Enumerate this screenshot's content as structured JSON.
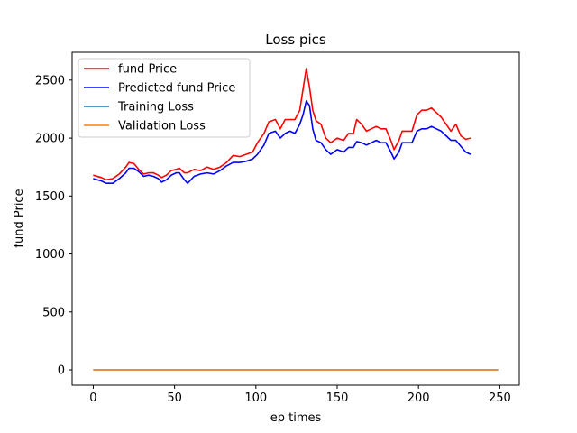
{
  "chart_data": {
    "type": "line",
    "title": "Loss pics",
    "xlabel": "ep times",
    "ylabel": "fund Price",
    "xlim": [
      -13,
      262
    ],
    "ylim": [
      -132,
      2740
    ],
    "xticks": [
      0,
      50,
      100,
      150,
      200,
      250
    ],
    "yticks": [
      0,
      500,
      1000,
      1500,
      2000,
      2500
    ],
    "grid": false,
    "legend_position": "top-left",
    "series": [
      {
        "name": "fund Price",
        "color": "#ff0000",
        "points": [
          [
            0,
            1680
          ],
          [
            5,
            1660
          ],
          [
            8,
            1640
          ],
          [
            12,
            1650
          ],
          [
            16,
            1690
          ],
          [
            20,
            1750
          ],
          [
            22,
            1790
          ],
          [
            25,
            1780
          ],
          [
            28,
            1730
          ],
          [
            31,
            1690
          ],
          [
            34,
            1700
          ],
          [
            37,
            1700
          ],
          [
            40,
            1680
          ],
          [
            42,
            1660
          ],
          [
            45,
            1680
          ],
          [
            48,
            1720
          ],
          [
            51,
            1730
          ],
          [
            53,
            1740
          ],
          [
            56,
            1700
          ],
          [
            58,
            1700
          ],
          [
            62,
            1730
          ],
          [
            66,
            1720
          ],
          [
            70,
            1750
          ],
          [
            74,
            1730
          ],
          [
            78,
            1750
          ],
          [
            82,
            1790
          ],
          [
            86,
            1850
          ],
          [
            90,
            1840
          ],
          [
            94,
            1860
          ],
          [
            98,
            1880
          ],
          [
            101,
            1960
          ],
          [
            105,
            2040
          ],
          [
            108,
            2140
          ],
          [
            112,
            2160
          ],
          [
            115,
            2080
          ],
          [
            118,
            2160
          ],
          [
            121,
            2160
          ],
          [
            124,
            2160
          ],
          [
            127,
            2240
          ],
          [
            129,
            2420
          ],
          [
            131,
            2600
          ],
          [
            133,
            2440
          ],
          [
            135,
            2240
          ],
          [
            137,
            2150
          ],
          [
            140,
            2120
          ],
          [
            143,
            2000
          ],
          [
            146,
            1960
          ],
          [
            150,
            2000
          ],
          [
            154,
            1980
          ],
          [
            157,
            2040
          ],
          [
            160,
            2040
          ],
          [
            162,
            2160
          ],
          [
            165,
            2120
          ],
          [
            168,
            2060
          ],
          [
            171,
            2080
          ],
          [
            174,
            2100
          ],
          [
            177,
            2080
          ],
          [
            180,
            2080
          ],
          [
            183,
            1980
          ],
          [
            185,
            1900
          ],
          [
            188,
            1980
          ],
          [
            190,
            2060
          ],
          [
            193,
            2060
          ],
          [
            196,
            2060
          ],
          [
            199,
            2200
          ],
          [
            202,
            2240
          ],
          [
            205,
            2240
          ],
          [
            208,
            2260
          ],
          [
            211,
            2220
          ],
          [
            214,
            2180
          ],
          [
            217,
            2120
          ],
          [
            220,
            2060
          ],
          [
            223,
            2120
          ],
          [
            226,
            2020
          ],
          [
            229,
            1990
          ],
          [
            232,
            2000
          ]
        ]
      },
      {
        "name": "Predicted fund Price",
        "color": "#0000ff",
        "points": [
          [
            0,
            1650
          ],
          [
            5,
            1630
          ],
          [
            8,
            1610
          ],
          [
            12,
            1610
          ],
          [
            16,
            1650
          ],
          [
            20,
            1700
          ],
          [
            22,
            1740
          ],
          [
            25,
            1740
          ],
          [
            28,
            1710
          ],
          [
            31,
            1670
          ],
          [
            34,
            1680
          ],
          [
            37,
            1670
          ],
          [
            40,
            1650
          ],
          [
            42,
            1620
          ],
          [
            45,
            1640
          ],
          [
            48,
            1680
          ],
          [
            51,
            1700
          ],
          [
            53,
            1700
          ],
          [
            56,
            1640
          ],
          [
            58,
            1610
          ],
          [
            62,
            1670
          ],
          [
            66,
            1690
          ],
          [
            70,
            1700
          ],
          [
            74,
            1690
          ],
          [
            78,
            1720
          ],
          [
            82,
            1760
          ],
          [
            86,
            1790
          ],
          [
            90,
            1790
          ],
          [
            94,
            1800
          ],
          [
            98,
            1820
          ],
          [
            101,
            1860
          ],
          [
            105,
            1940
          ],
          [
            108,
            2040
          ],
          [
            112,
            2060
          ],
          [
            115,
            2000
          ],
          [
            118,
            2040
          ],
          [
            121,
            2060
          ],
          [
            124,
            2040
          ],
          [
            127,
            2120
          ],
          [
            129,
            2200
          ],
          [
            131,
            2320
          ],
          [
            133,
            2280
          ],
          [
            135,
            2080
          ],
          [
            137,
            1980
          ],
          [
            140,
            1960
          ],
          [
            143,
            1900
          ],
          [
            146,
            1860
          ],
          [
            150,
            1900
          ],
          [
            154,
            1880
          ],
          [
            157,
            1920
          ],
          [
            160,
            1920
          ],
          [
            162,
            1970
          ],
          [
            165,
            1960
          ],
          [
            168,
            1940
          ],
          [
            171,
            1960
          ],
          [
            174,
            1980
          ],
          [
            177,
            1960
          ],
          [
            180,
            1960
          ],
          [
            183,
            1880
          ],
          [
            185,
            1820
          ],
          [
            188,
            1880
          ],
          [
            190,
            1960
          ],
          [
            193,
            1960
          ],
          [
            196,
            1960
          ],
          [
            199,
            2060
          ],
          [
            202,
            2080
          ],
          [
            205,
            2080
          ],
          [
            208,
            2100
          ],
          [
            211,
            2080
          ],
          [
            214,
            2060
          ],
          [
            217,
            2020
          ],
          [
            220,
            1980
          ],
          [
            223,
            1980
          ],
          [
            226,
            1930
          ],
          [
            229,
            1880
          ],
          [
            232,
            1860
          ]
        ]
      },
      {
        "name": "Training Loss",
        "color": "#1f77b4",
        "points": [
          [
            0,
            0.5
          ],
          [
            50,
            0.3
          ],
          [
            100,
            0.2
          ],
          [
            150,
            0.2
          ],
          [
            200,
            0.1
          ],
          [
            249,
            0.1
          ]
        ]
      },
      {
        "name": "Validation Loss",
        "color": "#ff7f0e",
        "points": [
          [
            0,
            0.5
          ],
          [
            50,
            0.3
          ],
          [
            100,
            0.3
          ],
          [
            150,
            0.2
          ],
          [
            200,
            0.2
          ],
          [
            249,
            0.2
          ]
        ]
      }
    ]
  }
}
